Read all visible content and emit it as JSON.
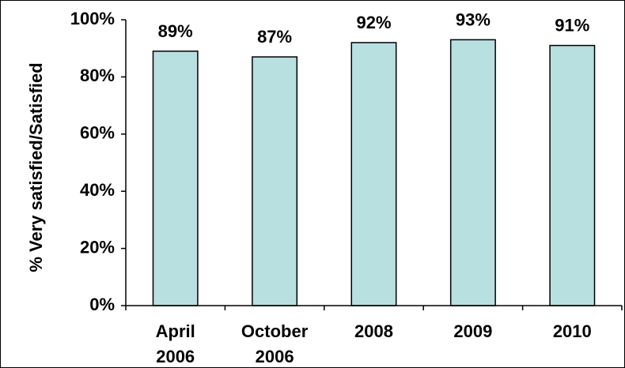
{
  "chart_data": {
    "type": "bar",
    "categories": [
      [
        "April",
        "2006"
      ],
      [
        "October",
        "2006"
      ],
      [
        "2008"
      ],
      [
        "2009"
      ],
      [
        "2010"
      ]
    ],
    "values": [
      89,
      87,
      92,
      93,
      91
    ],
    "data_labels": [
      "89%",
      "87%",
      "92%",
      "93%",
      "91%"
    ],
    "ylabel": "% Very satisfied/Satisfied",
    "ylim": [
      0,
      100
    ],
    "yticks": [
      0,
      20,
      40,
      60,
      80,
      100
    ],
    "ytick_labels": [
      "0%",
      "20%",
      "40%",
      "60%",
      "80%",
      "100%"
    ],
    "grid": false,
    "legend": "none",
    "bar_color": "#b9e0e0",
    "bar_edge_color": "#000000"
  }
}
